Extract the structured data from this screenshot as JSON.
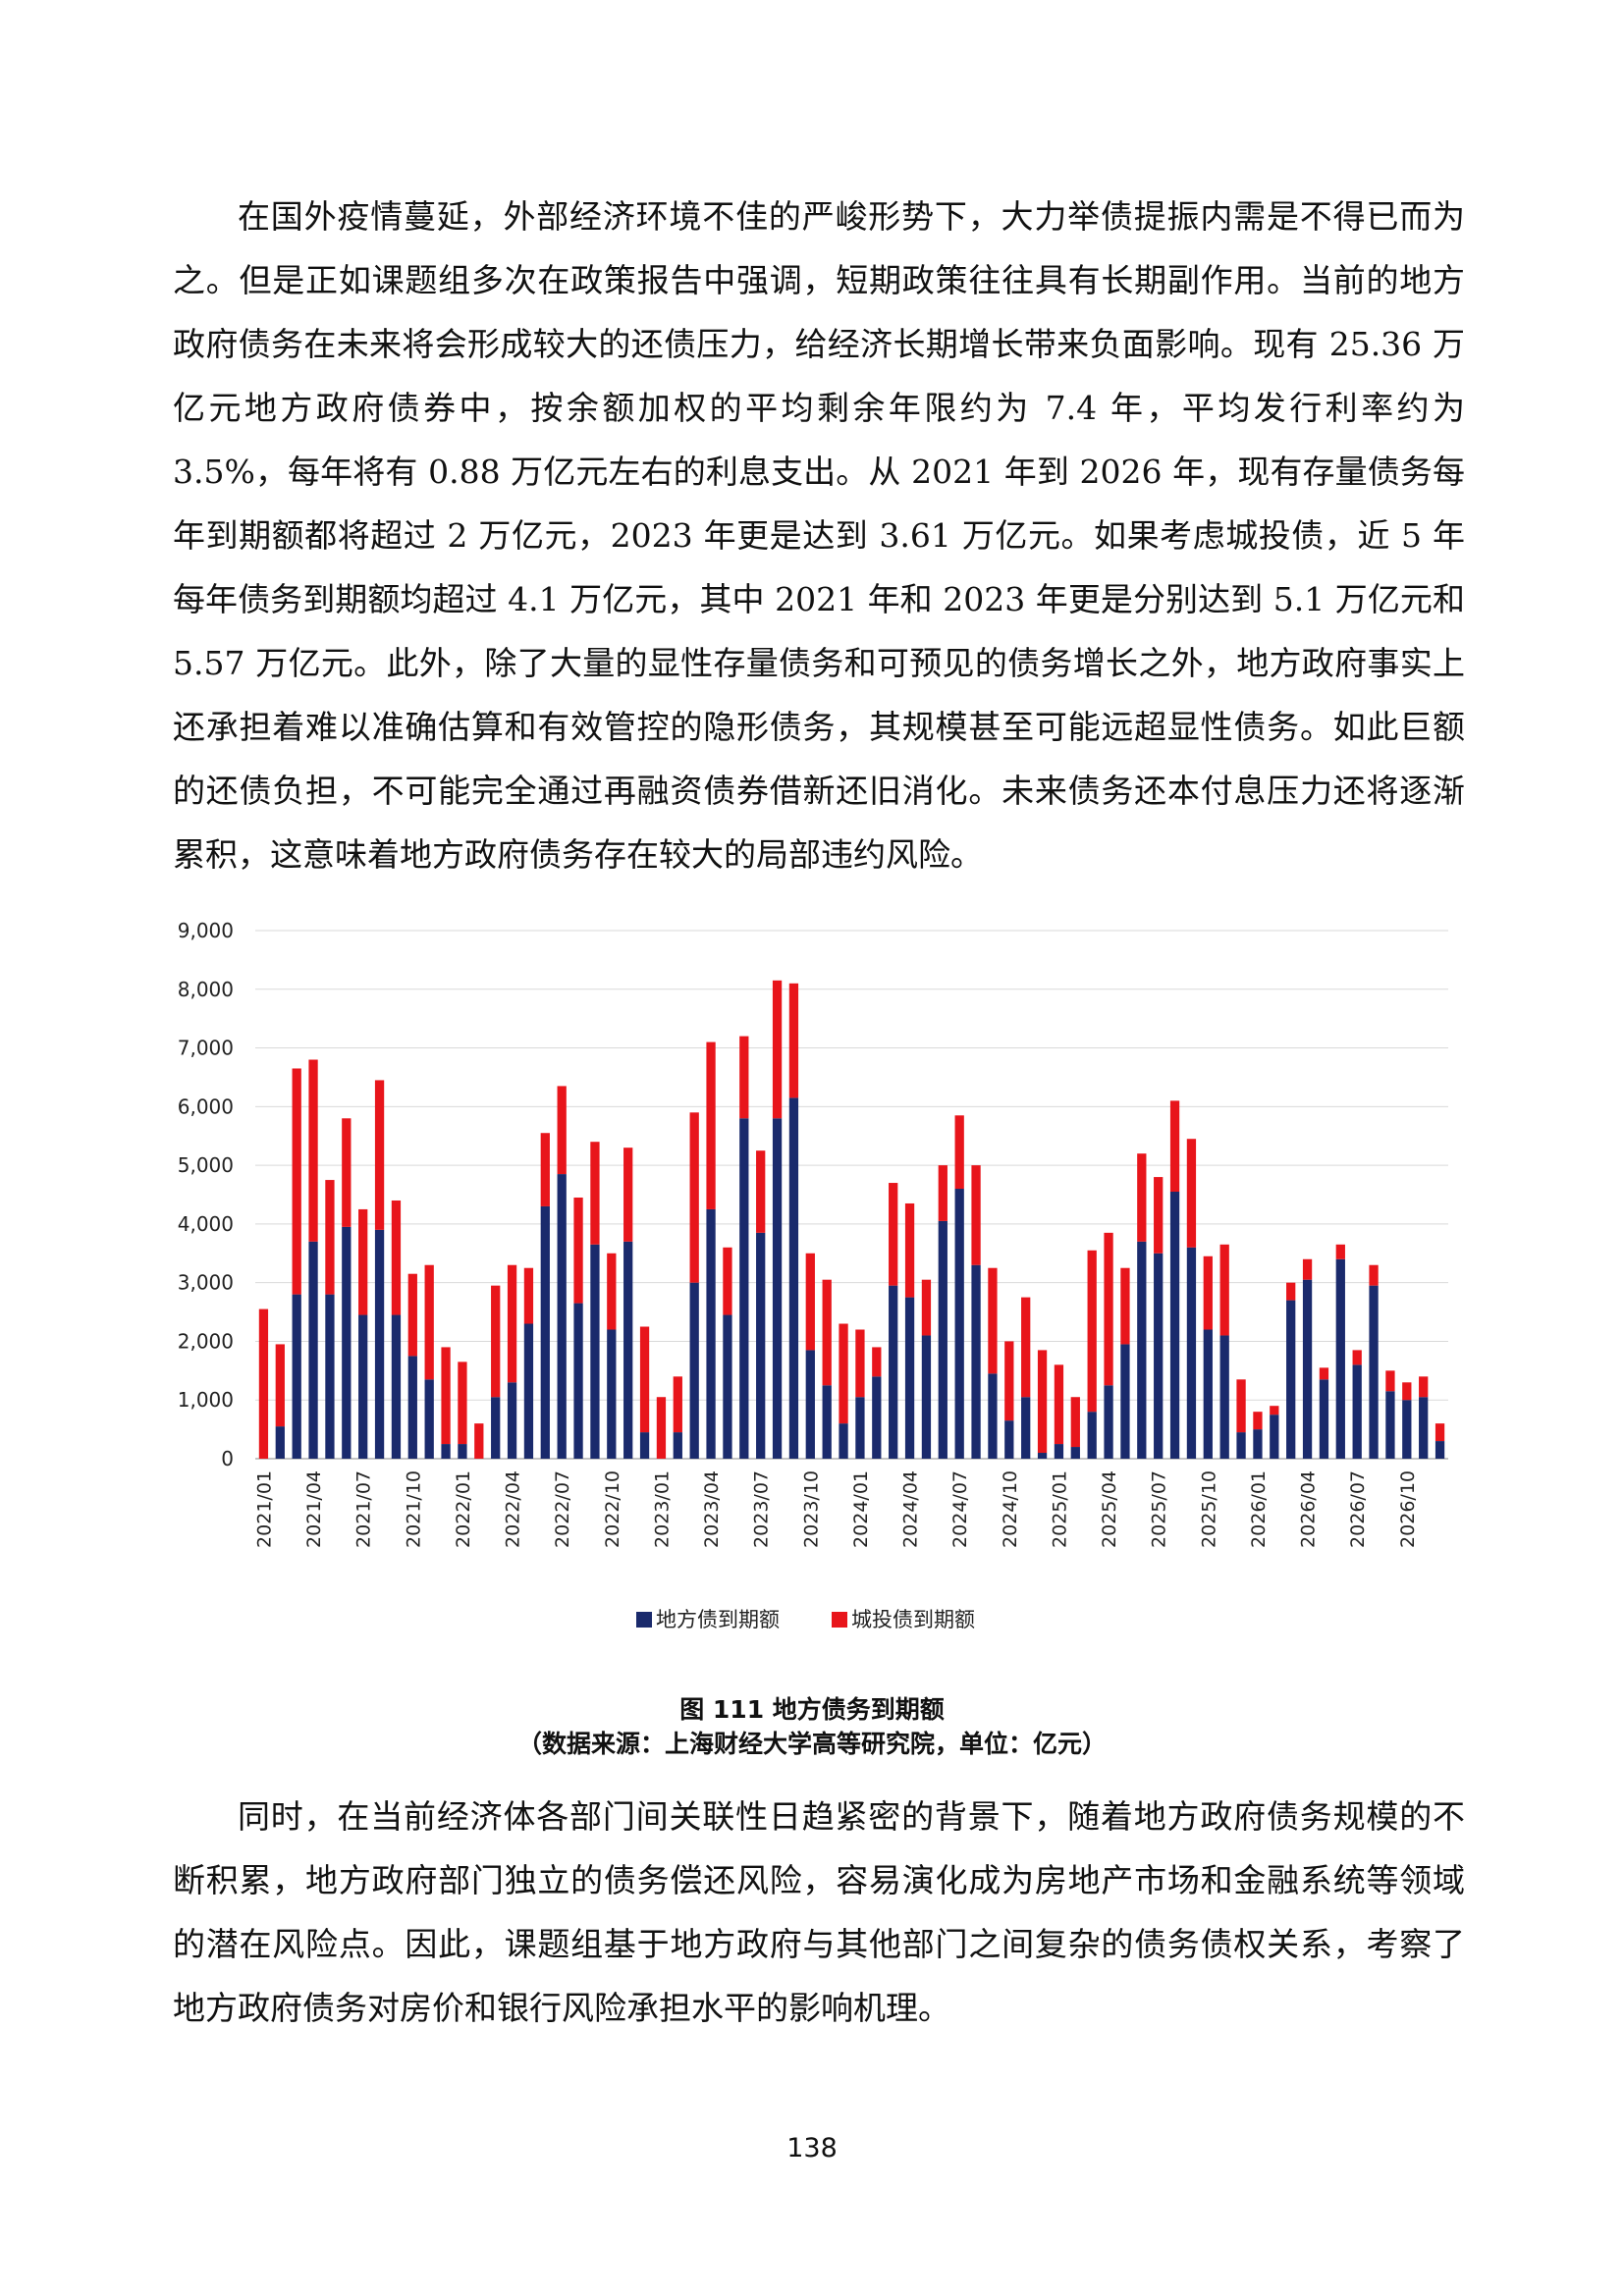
{
  "paragraphs": {
    "p1": "在国外疫情蔓延，外部经济环境不佳的严峻形势下，大力举债提振内需是不得已而为之。但是正如课题组多次在政策报告中强调，短期政策往往具有长期副作用。当前的地方政府债务在未来将会形成较大的还债压力，给经济长期增长带来负面影响。现有 25.36 万亿元地方政府债券中，按余额加权的平均剩余年限约为 7.4 年，平均发行利率约为 3.5%，每年将有 0.88 万亿元左右的利息支出。从 2021 年到 2026 年，现有存量债务每年到期额都将超过 2 万亿元，2023 年更是达到 3.61 万亿元。如果考虑城投债，近 5 年每年债务到期额均超过 4.1 万亿元，其中 2021 年和 2023 年更是分别达到 5.1 万亿元和 5.57 万亿元。此外，除了大量的显性存量债务和可预见的债务增长之外，地方政府事实上还承担着难以准确估算和有效管控的隐形债务，其规模甚至可能远超显性债务。如此巨额的还债负担，不可能完全通过再融资债券借新还旧消化。未来债务还本付息压力还将逐渐累积，这意味着地方政府债务存在较大的局部违约风险。",
    "p2": "同时，在当前经济体各部门间关联性日趋紧密的背景下，随着地方政府债务规模的不断积累，地方政府部门独立的债务偿还风险，容易演化成为房地产市场和金融系统等领域的潜在风险点。因此，课题组基于地方政府与其他部门之间复杂的债务债权关系，考察了地方政府债务对房价和银行风险承担水平的影响机理。"
  },
  "caption": {
    "title": "图 111 地方债务到期额",
    "source": "（数据来源：上海财经大学高等研究院，单位：亿元）"
  },
  "page_number": "138",
  "chart_data": {
    "type": "bar",
    "stacked": true,
    "title": "",
    "xlabel": "",
    "ylabel": "",
    "ylim": [
      0,
      9000
    ],
    "yticks": [
      "0",
      "1,000",
      "2,000",
      "3,000",
      "4,000",
      "5,000",
      "6,000",
      "7,000",
      "8,000",
      "9,000"
    ],
    "grid": true,
    "legend_position": "bottom",
    "categories": [
      "2021/01",
      "2021/02",
      "2021/03",
      "2021/04",
      "2021/05",
      "2021/06",
      "2021/07",
      "2021/08",
      "2021/09",
      "2021/10",
      "2021/11",
      "2021/12",
      "2022/01",
      "2022/02",
      "2022/03",
      "2022/04",
      "2022/05",
      "2022/06",
      "2022/07",
      "2022/08",
      "2022/09",
      "2022/10",
      "2022/11",
      "2022/12",
      "2023/01",
      "2023/02",
      "2023/03",
      "2023/04",
      "2023/05",
      "2023/06",
      "2023/07",
      "2023/08",
      "2023/09",
      "2023/10",
      "2023/11",
      "2023/12",
      "2024/01",
      "2024/02",
      "2024/03",
      "2024/04",
      "2024/05",
      "2024/06",
      "2024/07",
      "2024/08",
      "2024/09",
      "2024/10",
      "2024/11",
      "2024/12",
      "2025/01",
      "2025/02",
      "2025/03",
      "2025/04",
      "2025/05",
      "2025/06",
      "2025/07",
      "2025/08",
      "2025/09",
      "2025/10",
      "2025/11",
      "2025/12",
      "2026/01",
      "2026/02",
      "2026/03",
      "2026/04",
      "2026/05",
      "2026/06",
      "2026/07",
      "2026/08",
      "2026/09",
      "2026/10",
      "2026/11",
      "2026/12"
    ],
    "tick_labels": [
      "2021/01",
      "2021/04",
      "2021/07",
      "2021/10",
      "2022/01",
      "2022/04",
      "2022/07",
      "2022/10",
      "2023/01",
      "2023/04",
      "2023/07",
      "2023/10",
      "2024/01",
      "2024/04",
      "2024/07",
      "2024/10",
      "2025/01",
      "2025/04",
      "2025/07",
      "2025/10",
      "2026/01",
      "2026/04",
      "2026/07",
      "2026/10"
    ],
    "series": [
      {
        "name": "地方债到期额",
        "color": "#1a2a6c",
        "values": [
          0,
          550,
          2800,
          3700,
          2800,
          3950,
          2450,
          3900,
          2450,
          1750,
          1350,
          250,
          250,
          0,
          1050,
          1300,
          2300,
          4300,
          4850,
          2650,
          3650,
          2200,
          3700,
          450,
          0,
          450,
          3000,
          4250,
          2450,
          5800,
          3850,
          5800,
          6150,
          1850,
          1250,
          600,
          1050,
          1400,
          2950,
          2750,
          2100,
          4050,
          4600,
          3300,
          1450,
          650,
          1050,
          100,
          250,
          200,
          800,
          1250,
          1950,
          3700,
          3500,
          4550,
          3600,
          2200,
          2100,
          450,
          500,
          750,
          2700,
          3050,
          1350,
          3400,
          1600,
          2950,
          1150,
          1000,
          1050,
          300
        ]
      },
      {
        "name": "城投债到期额",
        "color": "#e8151b",
        "values": [
          2550,
          1400,
          3850,
          3100,
          1950,
          1850,
          1800,
          2550,
          1950,
          1400,
          1950,
          1650,
          1400,
          600,
          1900,
          2000,
          950,
          1250,
          1500,
          1800,
          1750,
          1300,
          1600,
          1800,
          1050,
          950,
          2900,
          2850,
          1150,
          1400,
          1400,
          2350,
          1950,
          1650,
          1800,
          1700,
          1150,
          500,
          1750,
          1600,
          950,
          950,
          1250,
          1700,
          1800,
          1350,
          1700,
          1750,
          1350,
          850,
          2750,
          2600,
          1300,
          1500,
          1300,
          1550,
          1850,
          1250,
          1550,
          900,
          300,
          150,
          300,
          350,
          200,
          250,
          250,
          350,
          350,
          300,
          350,
          300
        ]
      }
    ]
  }
}
